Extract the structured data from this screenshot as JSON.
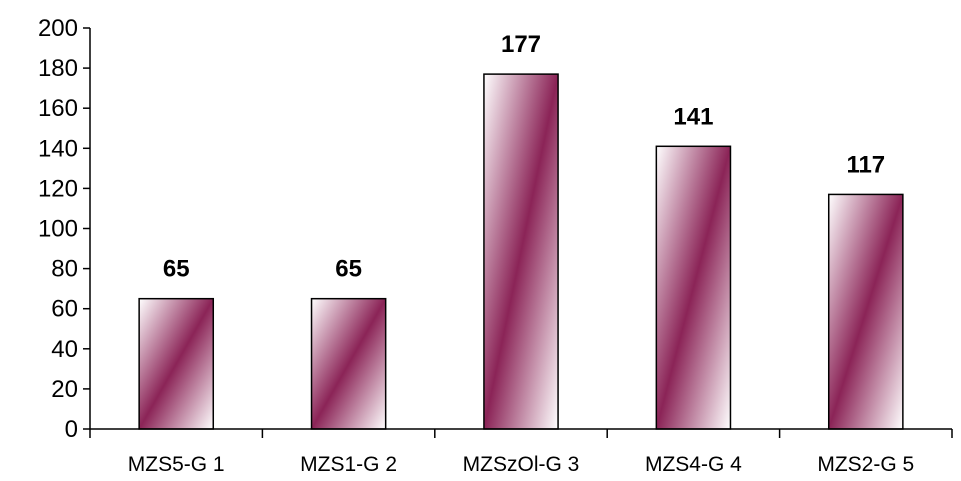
{
  "chart_data": {
    "type": "bar",
    "categories": [
      "MZS5-G 1",
      "MZS1-G 2",
      "MZSzOl-G 3",
      "MZS4-G 4",
      "MZS2-G 5"
    ],
    "values": [
      65,
      65,
      177,
      141,
      117
    ],
    "data_labels": [
      "65",
      "65",
      "177",
      "141",
      "117"
    ],
    "y_ticks": [
      "0",
      "20",
      "40",
      "60",
      "80",
      "100",
      "120",
      "140",
      "160",
      "180",
      "200"
    ],
    "ylim": [
      0,
      200
    ],
    "grid": false,
    "legend": "none",
    "bar_fill": {
      "edge": "#ffffff",
      "center": "#8b2457"
    }
  }
}
